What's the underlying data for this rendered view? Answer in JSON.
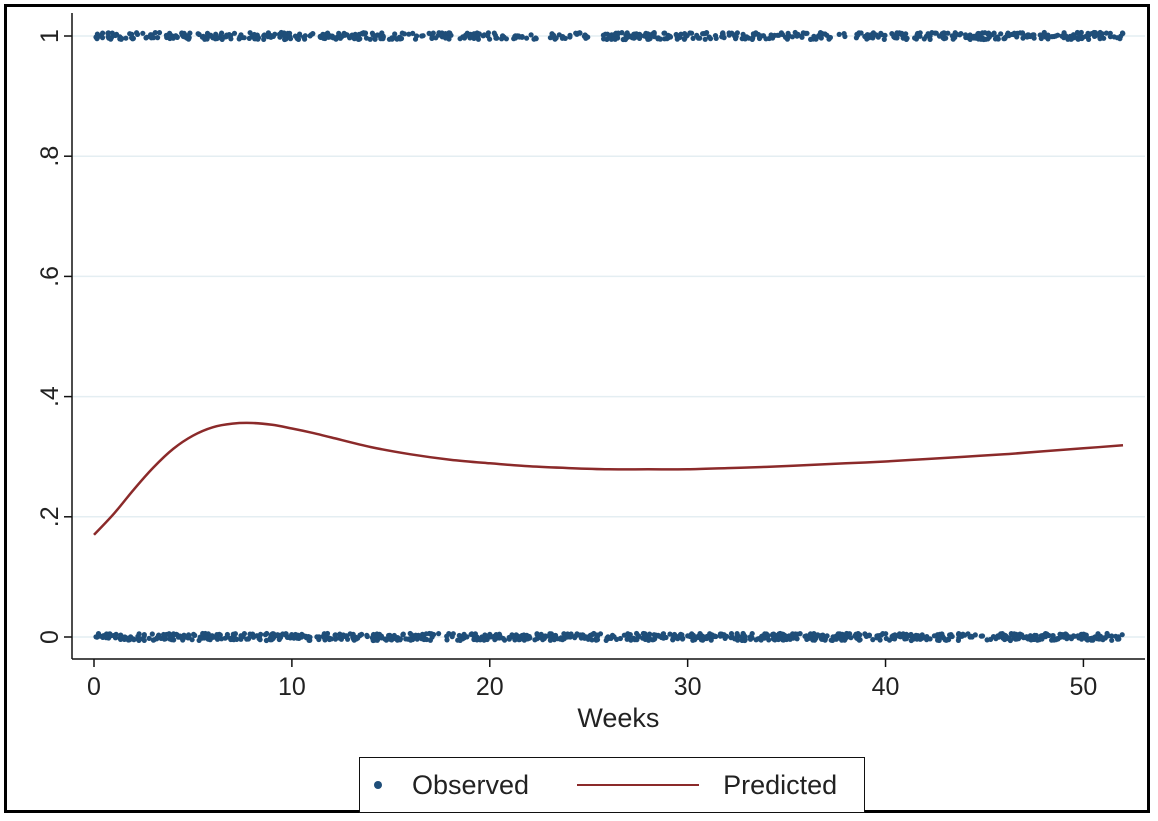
{
  "colors": {
    "observed": "#1f4e79",
    "predicted": "#8b2a2a",
    "grid": "#e4eef2"
  },
  "legend": {
    "observed_label": "Observed",
    "predicted_label": "Predicted"
  },
  "chart_data": {
    "type": "scatter",
    "xlabel": "Weeks",
    "ylabel": "",
    "xlim": [
      0,
      52
    ],
    "ylim": [
      0,
      1
    ],
    "x_ticks": [
      0,
      10,
      20,
      30,
      40,
      50
    ],
    "x_tick_labels": [
      "0",
      "10",
      "20",
      "30",
      "40",
      "50"
    ],
    "y_ticks": [
      0,
      0.2,
      0.4,
      0.6,
      0.8,
      1
    ],
    "y_tick_labels": [
      "0",
      ".2",
      ".4",
      ".6",
      ".8",
      "1"
    ],
    "grid": true,
    "legend_position": "bottom",
    "series": [
      {
        "name": "Observed",
        "type": "scatter",
        "description_values": [
          0,
          1
        ],
        "x_range": [
          0,
          52
        ]
      },
      {
        "name": "Predicted",
        "type": "line",
        "x": [
          0,
          1,
          2,
          3,
          4,
          5,
          6,
          7,
          8,
          9,
          10,
          11,
          12,
          14,
          16,
          18,
          20,
          22,
          24,
          26,
          28,
          30,
          32,
          34,
          36,
          38,
          40,
          42,
          44,
          46,
          48,
          50,
          52
        ],
        "y": [
          0.17,
          0.205,
          0.245,
          0.282,
          0.313,
          0.335,
          0.349,
          0.355,
          0.356,
          0.353,
          0.347,
          0.34,
          0.332,
          0.316,
          0.304,
          0.295,
          0.289,
          0.284,
          0.281,
          0.279,
          0.279,
          0.279,
          0.281,
          0.283,
          0.286,
          0.289,
          0.292,
          0.296,
          0.3,
          0.304,
          0.309,
          0.314,
          0.319
        ]
      }
    ]
  }
}
